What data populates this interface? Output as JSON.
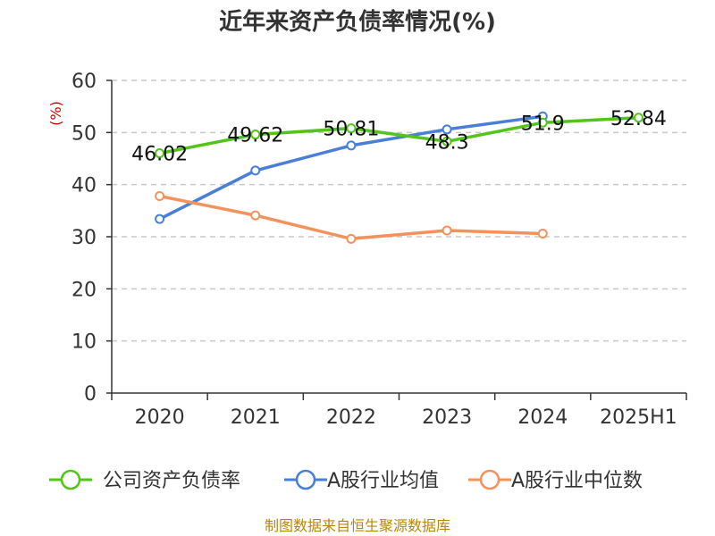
{
  "chart_data": {
    "type": "line",
    "title": "近年来资产负债率情况(%)",
    "ylabel": "(%)",
    "xlabel": "",
    "categories": [
      "2020",
      "2021",
      "2022",
      "2023",
      "2024",
      "2025H1"
    ],
    "ylim": [
      0,
      60
    ],
    "yticks": [
      0,
      10,
      20,
      30,
      40,
      50,
      60
    ],
    "grid": true,
    "legend_position": "bottom",
    "series": [
      {
        "name": "公司资产负债率",
        "color": "#52c41a",
        "values": [
          46.02,
          49.62,
          50.81,
          48.3,
          51.9,
          52.84
        ],
        "labels": [
          "46.02",
          "49.62",
          "50.81",
          "48.3",
          "51.9",
          "52.84"
        ]
      },
      {
        "name": "A股行业均值",
        "color": "#4a7fd8",
        "values": [
          33.4,
          42.7,
          47.5,
          50.6,
          53.1,
          null
        ]
      },
      {
        "name": "A股行业中位数",
        "color": "#f4925e",
        "values": [
          37.8,
          34.1,
          29.6,
          31.2,
          30.6,
          null
        ]
      }
    ],
    "source": "制图数据来自恒生聚源数据库"
  }
}
